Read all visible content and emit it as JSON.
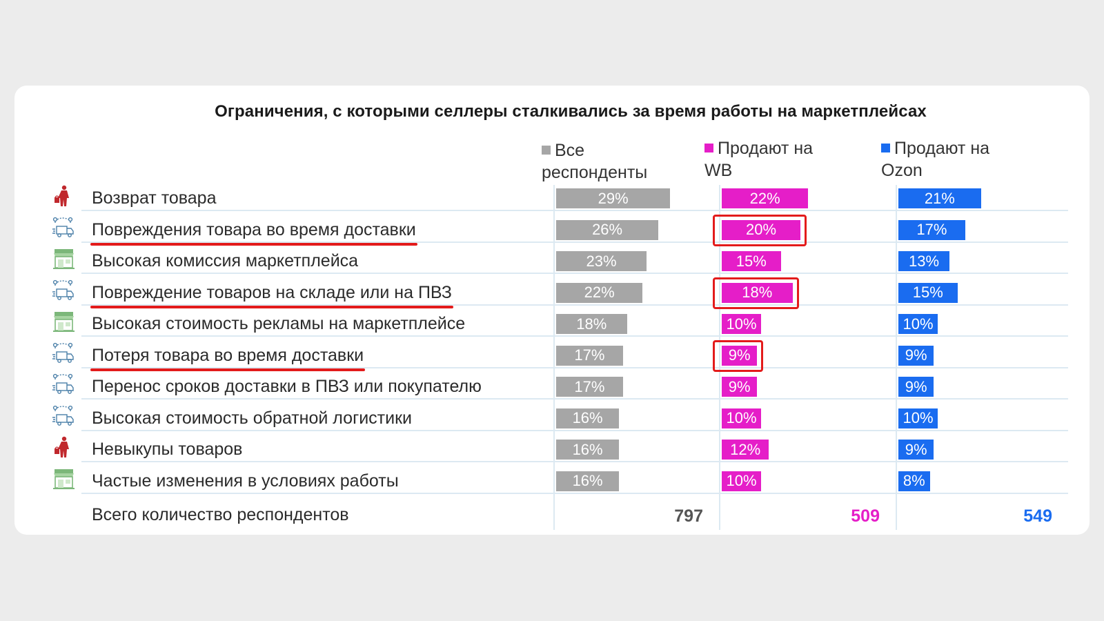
{
  "colors": {
    "all": "#a6a6a6",
    "wb": "#e51ec8",
    "ozon": "#1a6cf0",
    "highlight": "#e31b1b"
  },
  "chart_data": {
    "type": "bar",
    "title": "Ограничения, с которыми селлеры сталкивались за время работы на маркетплейсах",
    "categories": [
      "Возврат товара",
      "Повреждения товара во время доставки",
      "Высокая комиссия маркетплейса",
      "Повреждение товаров на складе или на ПВЗ",
      "Высокая стоимость рекламы на маркетплейсе",
      "Потеря товара во время доставки",
      "Перенос сроков доставки в ПВЗ или покупателю",
      "Высокая стоимость обратной логистики",
      "Невыкупы товаров",
      "Частые изменения в условиях работы"
    ],
    "category_icons": [
      "person-bag-icon",
      "delivery-truck-icon",
      "storefront-icon",
      "delivery-truck-icon",
      "storefront-icon",
      "delivery-truck-icon",
      "delivery-truck-icon",
      "delivery-truck-icon",
      "person-bag-icon",
      "storefront-icon"
    ],
    "series": [
      {
        "name": "Все\nреспонденты",
        "values": [
          29,
          26,
          23,
          22,
          18,
          17,
          17,
          16,
          16,
          16
        ],
        "labels": [
          "29%",
          "26%",
          "23%",
          "22%",
          "18%",
          "17%",
          "17%",
          "16%",
          "16%",
          "16%"
        ],
        "total": "797"
      },
      {
        "name": "Продают на\nWB",
        "values": [
          22,
          20,
          15,
          18,
          10,
          9,
          9,
          10,
          12,
          10
        ],
        "labels": [
          "22%",
          "20%",
          "15%",
          "18%",
          "10%",
          "9%",
          "9%",
          "10%",
          "12%",
          "10%"
        ],
        "total": "509"
      },
      {
        "name": "Продают на\nOzon",
        "values": [
          21,
          17,
          13,
          15,
          10,
          9,
          9,
          10,
          9,
          8
        ],
        "labels": [
          "21%",
          "17%",
          "13%",
          "15%",
          "10%",
          "9%",
          "9%",
          "10%",
          "9%",
          "8%"
        ],
        "total": "549"
      }
    ],
    "total_label": "Всего количество респондентов",
    "underlined_rows": [
      1,
      3,
      5
    ],
    "highlighted_wb_rows": [
      1,
      3,
      5
    ],
    "legend_position": "top"
  }
}
